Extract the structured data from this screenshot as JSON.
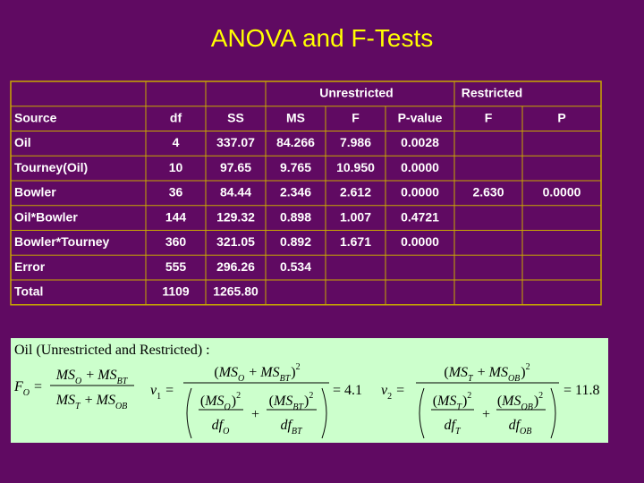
{
  "title": "ANOVA and F-Tests",
  "table": {
    "header_groups": [
      "Unrestricted",
      "Restricted"
    ],
    "columns": [
      "Source",
      "df",
      "SS",
      "MS",
      "F",
      "P-value",
      "F",
      "P"
    ],
    "rows": [
      [
        "Oil",
        "4",
        "337.07",
        "84.266",
        "7.986",
        "0.0028",
        null,
        null
      ],
      [
        "Tourney(Oil)",
        "10",
        "97.65",
        "9.765",
        "10.950",
        "0.0000",
        null,
        null
      ],
      [
        "Bowler",
        "36",
        "84.44",
        "2.346",
        "2.612",
        "0.0000",
        "2.630",
        "0.0000"
      ],
      [
        "Oil*Bowler",
        "144",
        "129.32",
        "0.898",
        "1.007",
        "0.4721",
        null,
        null
      ],
      [
        "Bowler*Tourney",
        "360",
        "321.05",
        "0.892",
        "1.671",
        "0.0000",
        null,
        null
      ],
      [
        "Error",
        "555",
        "296.26",
        "0.534",
        null,
        null,
        null,
        null
      ],
      [
        "Total",
        "1109",
        "1265.80",
        null,
        null,
        null,
        null,
        null
      ]
    ]
  },
  "formula": {
    "caption": "Oil (Unrestricted and Restricted) :",
    "F": "F",
    "O": "O",
    "eq": "=",
    "MS": "MS",
    "plus": "+",
    "BT": "BT",
    "T": "T",
    "OB": "OB",
    "nu": "ν",
    "one": "1",
    "two": "2",
    "lp": "(",
    "rp": ")",
    "df": "df",
    "nu1_value": "4.1",
    "nu2_value": "11.8"
  }
}
